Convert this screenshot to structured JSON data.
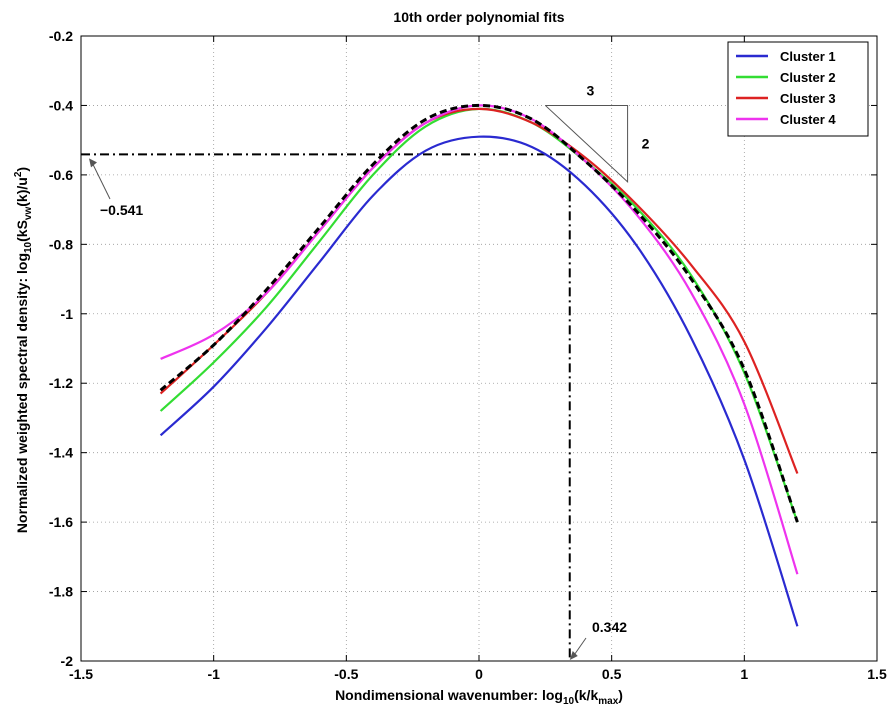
{
  "chart_data": {
    "type": "line",
    "title": "10th order polynomial fits",
    "xlabel_parts": {
      "a": "Nondimensional wavenumber: log",
      "sub1": "10",
      "b": "(k/k",
      "sub2": "max",
      "c": ")"
    },
    "ylabel_parts": {
      "a": "Normalized weighted spectral density: log",
      "sub1": "10",
      "b": "(kS",
      "sub2": "vw",
      "c": "(k)/u",
      "sup": "2",
      "d": ")"
    },
    "xlim": [
      -1.5,
      1.5
    ],
    "ylim": [
      -2,
      -0.2
    ],
    "xticks": [
      -1.5,
      -1,
      -0.5,
      0,
      0.5,
      1,
      1.5
    ],
    "xtick_labels": [
      "-1.5",
      "-1",
      "-0.5",
      "0",
      "0.5",
      "1",
      "1.5"
    ],
    "yticks": [
      -2,
      -1.8,
      -1.6,
      -1.4,
      -1.2,
      -1,
      -0.8,
      -0.6,
      -0.4,
      -0.2
    ],
    "ytick_labels": [
      "-2",
      "-1.8",
      "-1.6",
      "-1.4",
      "-1.2",
      "-1",
      "-0.8",
      "-0.6",
      "-0.4",
      "-0.2"
    ],
    "grid": true,
    "legend_position": "top-right",
    "x": [
      -1.2,
      -1.0,
      -0.8,
      -0.6,
      -0.4,
      -0.2,
      0.0,
      0.2,
      0.4,
      0.6,
      0.8,
      1.0,
      1.2
    ],
    "series": [
      {
        "name": "Cluster 1",
        "color": "#2a2ad0",
        "values": [
          -1.35,
          -1.21,
          -1.04,
          -0.85,
          -0.66,
          -0.53,
          -0.49,
          -0.52,
          -0.63,
          -0.81,
          -1.07,
          -1.42,
          -1.9
        ]
      },
      {
        "name": "Cluster 2",
        "color": "#33dd33",
        "values": [
          -1.28,
          -1.14,
          -0.98,
          -0.79,
          -0.6,
          -0.46,
          -0.41,
          -0.45,
          -0.56,
          -0.7,
          -0.89,
          -1.17,
          -1.6
        ]
      },
      {
        "name": "Cluster 3",
        "color": "#dd2222",
        "values": [
          -1.23,
          -1.09,
          -0.94,
          -0.76,
          -0.58,
          -0.45,
          -0.41,
          -0.45,
          -0.55,
          -0.69,
          -0.86,
          -1.08,
          -1.46
        ]
      },
      {
        "name": "Cluster 4",
        "color": "#ee33ee",
        "values": [
          -1.13,
          -1.06,
          -0.94,
          -0.76,
          -0.58,
          -0.45,
          -0.4,
          -0.44,
          -0.56,
          -0.72,
          -0.94,
          -1.26,
          -1.75
        ]
      },
      {
        "color": "#000000",
        "dashed": true,
        "values": [
          -1.22,
          -1.09,
          -0.93,
          -0.75,
          -0.57,
          -0.44,
          -0.4,
          -0.44,
          -0.56,
          -0.71,
          -0.9,
          -1.16,
          -1.6
        ]
      }
    ],
    "reference_lines": {
      "y_value": -0.541,
      "x_value": 0.342,
      "y_label": "−0.541",
      "x_label": "0.342"
    },
    "slope_triangle": {
      "x1": 0.25,
      "x2": 0.56,
      "y_top": -0.4,
      "y_bottom": -0.62,
      "run_label": "3",
      "rise_label": "2"
    }
  }
}
